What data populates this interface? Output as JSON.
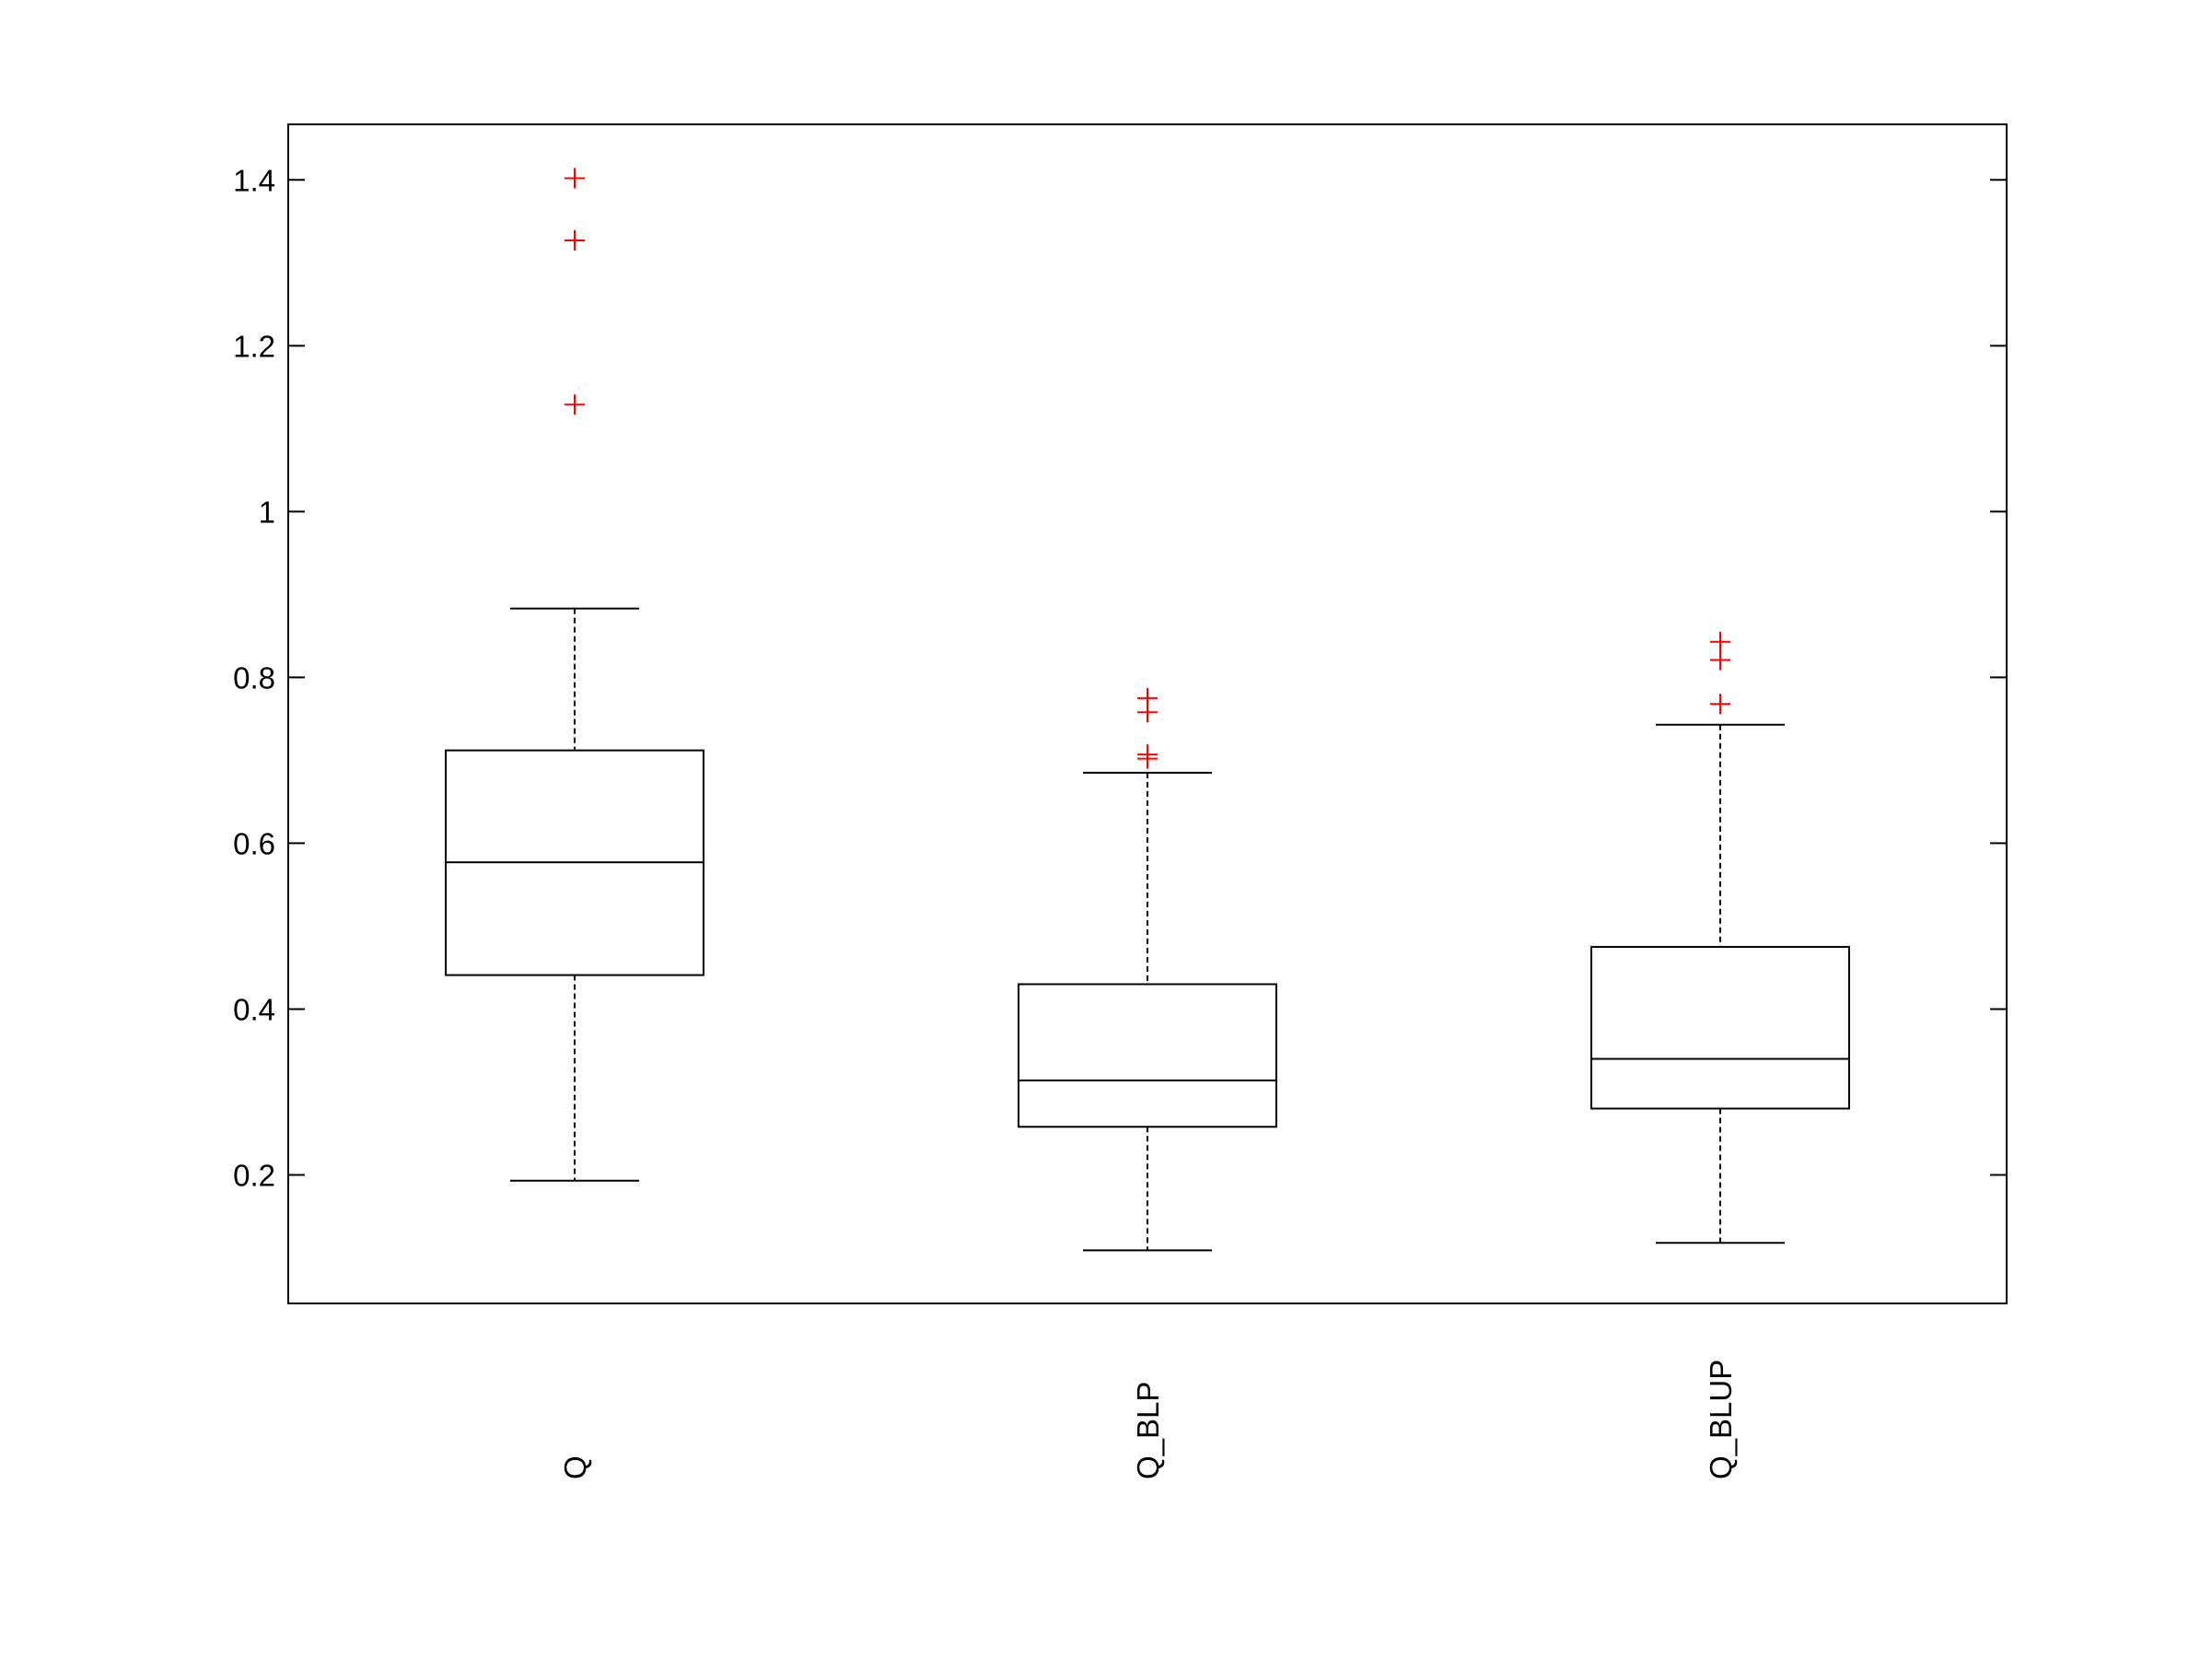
{
  "chart_data": {
    "type": "box",
    "categories": [
      "Q",
      "Q_BLP",
      "Q_BLUP"
    ],
    "boxes": [
      {
        "whisker_low": 0.193,
        "q1": 0.441,
        "median": 0.577,
        "q3": 0.712,
        "whisker_high": 0.883,
        "outliers": [
          1.402,
          1.327,
          1.129
        ]
      },
      {
        "whisker_low": 0.109,
        "q1": 0.258,
        "median": 0.314,
        "q3": 0.43,
        "whisker_high": 0.685,
        "outliers": [
          0.775,
          0.758,
          0.707,
          0.702
        ]
      },
      {
        "whisker_low": 0.118,
        "q1": 0.28,
        "median": 0.34,
        "q3": 0.475,
        "whisker_high": 0.743,
        "outliers": [
          0.843,
          0.821,
          0.768
        ]
      }
    ],
    "box_color": "#000000",
    "outlier_color": "#ff0000",
    "ylim": [
      0.045,
      1.467
    ],
    "yticks": [
      0.2,
      0.4,
      0.6,
      0.8,
      1,
      1.2,
      1.4
    ]
  }
}
